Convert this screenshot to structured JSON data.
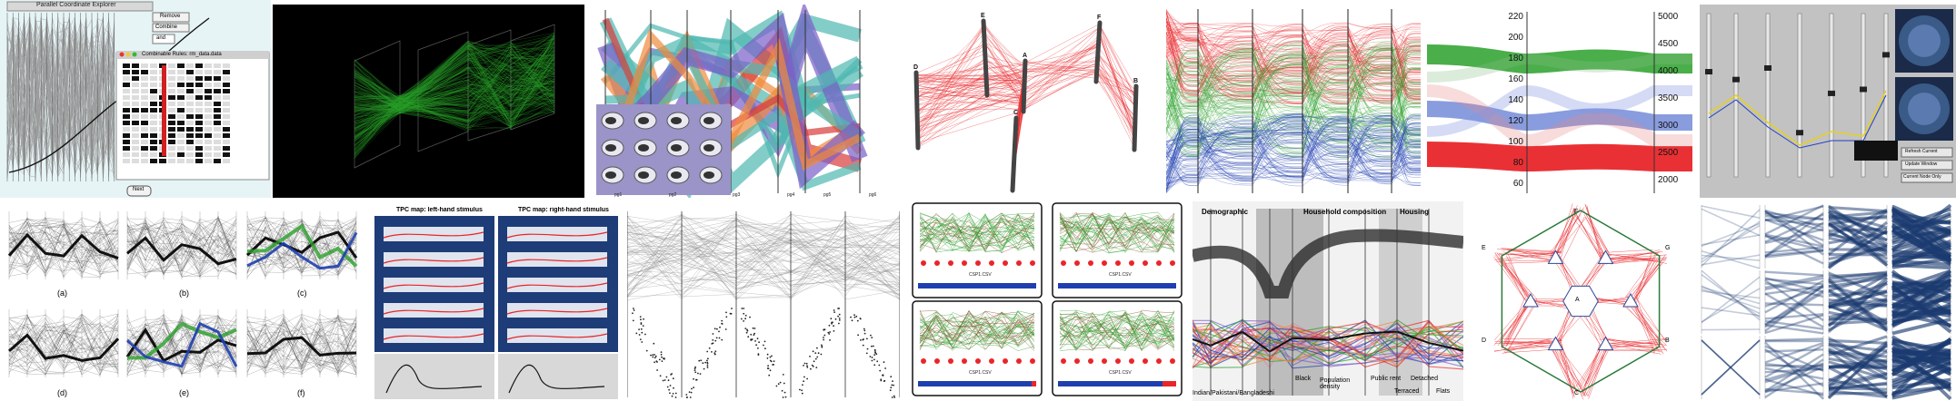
{
  "colors": {
    "red": "#e8262a",
    "green": "#2aa02a",
    "blue": "#1f3fb0",
    "teal": "#4fb8b0",
    "purple": "#7a5ec8",
    "orange": "#f08a3c",
    "dark": "#1a1a1a",
    "navy": "#1a3a70"
  },
  "p1": {
    "title": "Parallel Coordinate Explorer",
    "buttons": [
      "Remove",
      "Combine"
    ],
    "select": "and",
    "subtitle": "Combinable Rules: rm_data.data",
    "next": "Next"
  },
  "p3": {
    "axis_labels": [
      "pg1",
      "pg2",
      "pg3",
      "pg4",
      "pg5",
      "pg6"
    ]
  },
  "p4": {
    "axes": [
      "D",
      "E",
      "A",
      "C",
      "F",
      "B"
    ]
  },
  "p7": {
    "ticks_left": [
      "220",
      "200",
      "180",
      "160",
      "140",
      "120",
      "100",
      "80",
      "60"
    ],
    "ticks_right": [
      "5000",
      "4500",
      "4000",
      "3500",
      "3000",
      "2500",
      "2000"
    ]
  },
  "p8": {
    "buttons": [
      "Refresh Current",
      "Update Window",
      "Current Node Only"
    ],
    "caption": "Current Node Only"
  },
  "p9": {
    "labels": [
      "(a)",
      "(b)",
      "(c)",
      "(d)",
      "(e)",
      "(f)"
    ]
  },
  "p10": {
    "titles": [
      "TPC map: left-hand stimulus",
      "TPC map: right-hand stimulus"
    ]
  },
  "p12": {
    "caption": "CSP1.CSV"
  },
  "p13": {
    "headers": [
      "Demographic",
      "Household composition",
      "Housing"
    ],
    "bottom_labels": [
      "Indian/Pakistani/Bangladeshi",
      "Black",
      "Population density",
      "Public rent",
      "Detached",
      "Terraced",
      "Flats"
    ]
  },
  "p14": {
    "nodes": [
      "F",
      "G",
      "B",
      "C",
      "D",
      "E",
      "A"
    ]
  }
}
